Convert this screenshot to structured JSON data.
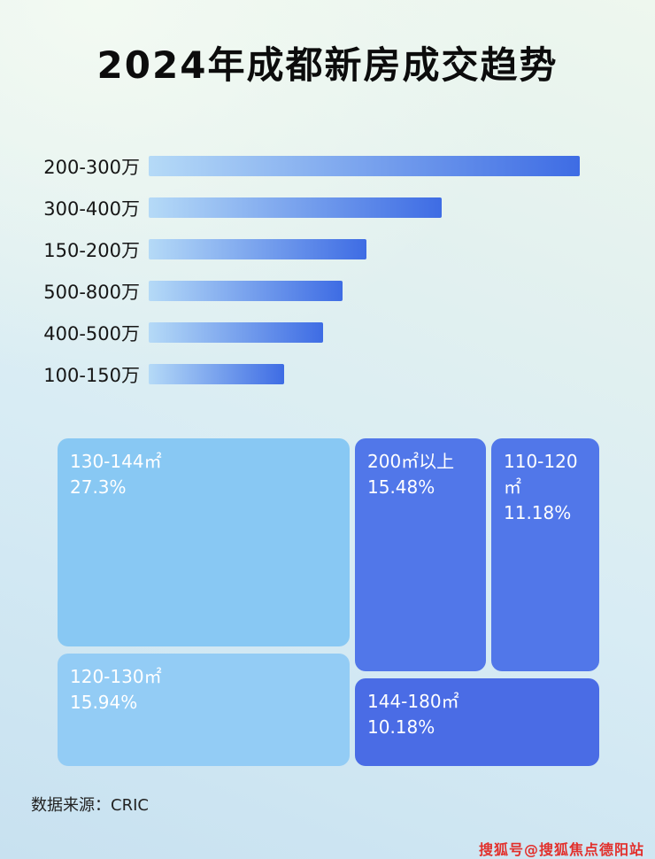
{
  "poster": {
    "title": "2024年成都新房成交趋势",
    "source_label": "数据来源：CRIC",
    "watermark": "搜狐号@搜狐焦点德阳站"
  },
  "chart_data": [
    {
      "type": "bar",
      "orientation": "horizontal",
      "categories": [
        "200-300万",
        "300-400万",
        "150-200万",
        "500-800万",
        "400-500万",
        "100-150万"
      ],
      "values": [
        100,
        68,
        50.5,
        45,
        40.5,
        31.5
      ],
      "value_unit": "relative bar length, % of longest bar (no numeric labels shown in image)",
      "bar_gradient": [
        "#b5daf7",
        "#3e6ce4"
      ],
      "legend": "none",
      "grid": "off"
    },
    {
      "type": "treemap",
      "items": [
        {
          "label": "130-144㎡",
          "value": "27.3%",
          "color": "#88c8f3"
        },
        {
          "label": "200㎡以上",
          "value": "15.48%",
          "color": "#5177e9"
        },
        {
          "label": "110-120㎡",
          "value": "11.18%",
          "color": "#5177e9"
        },
        {
          "label": "120-130㎡",
          "value": "15.94%",
          "color": "#93ccf5"
        },
        {
          "label": "144-180㎡",
          "value": "10.18%",
          "color": "#4a6ce5"
        }
      ]
    }
  ]
}
